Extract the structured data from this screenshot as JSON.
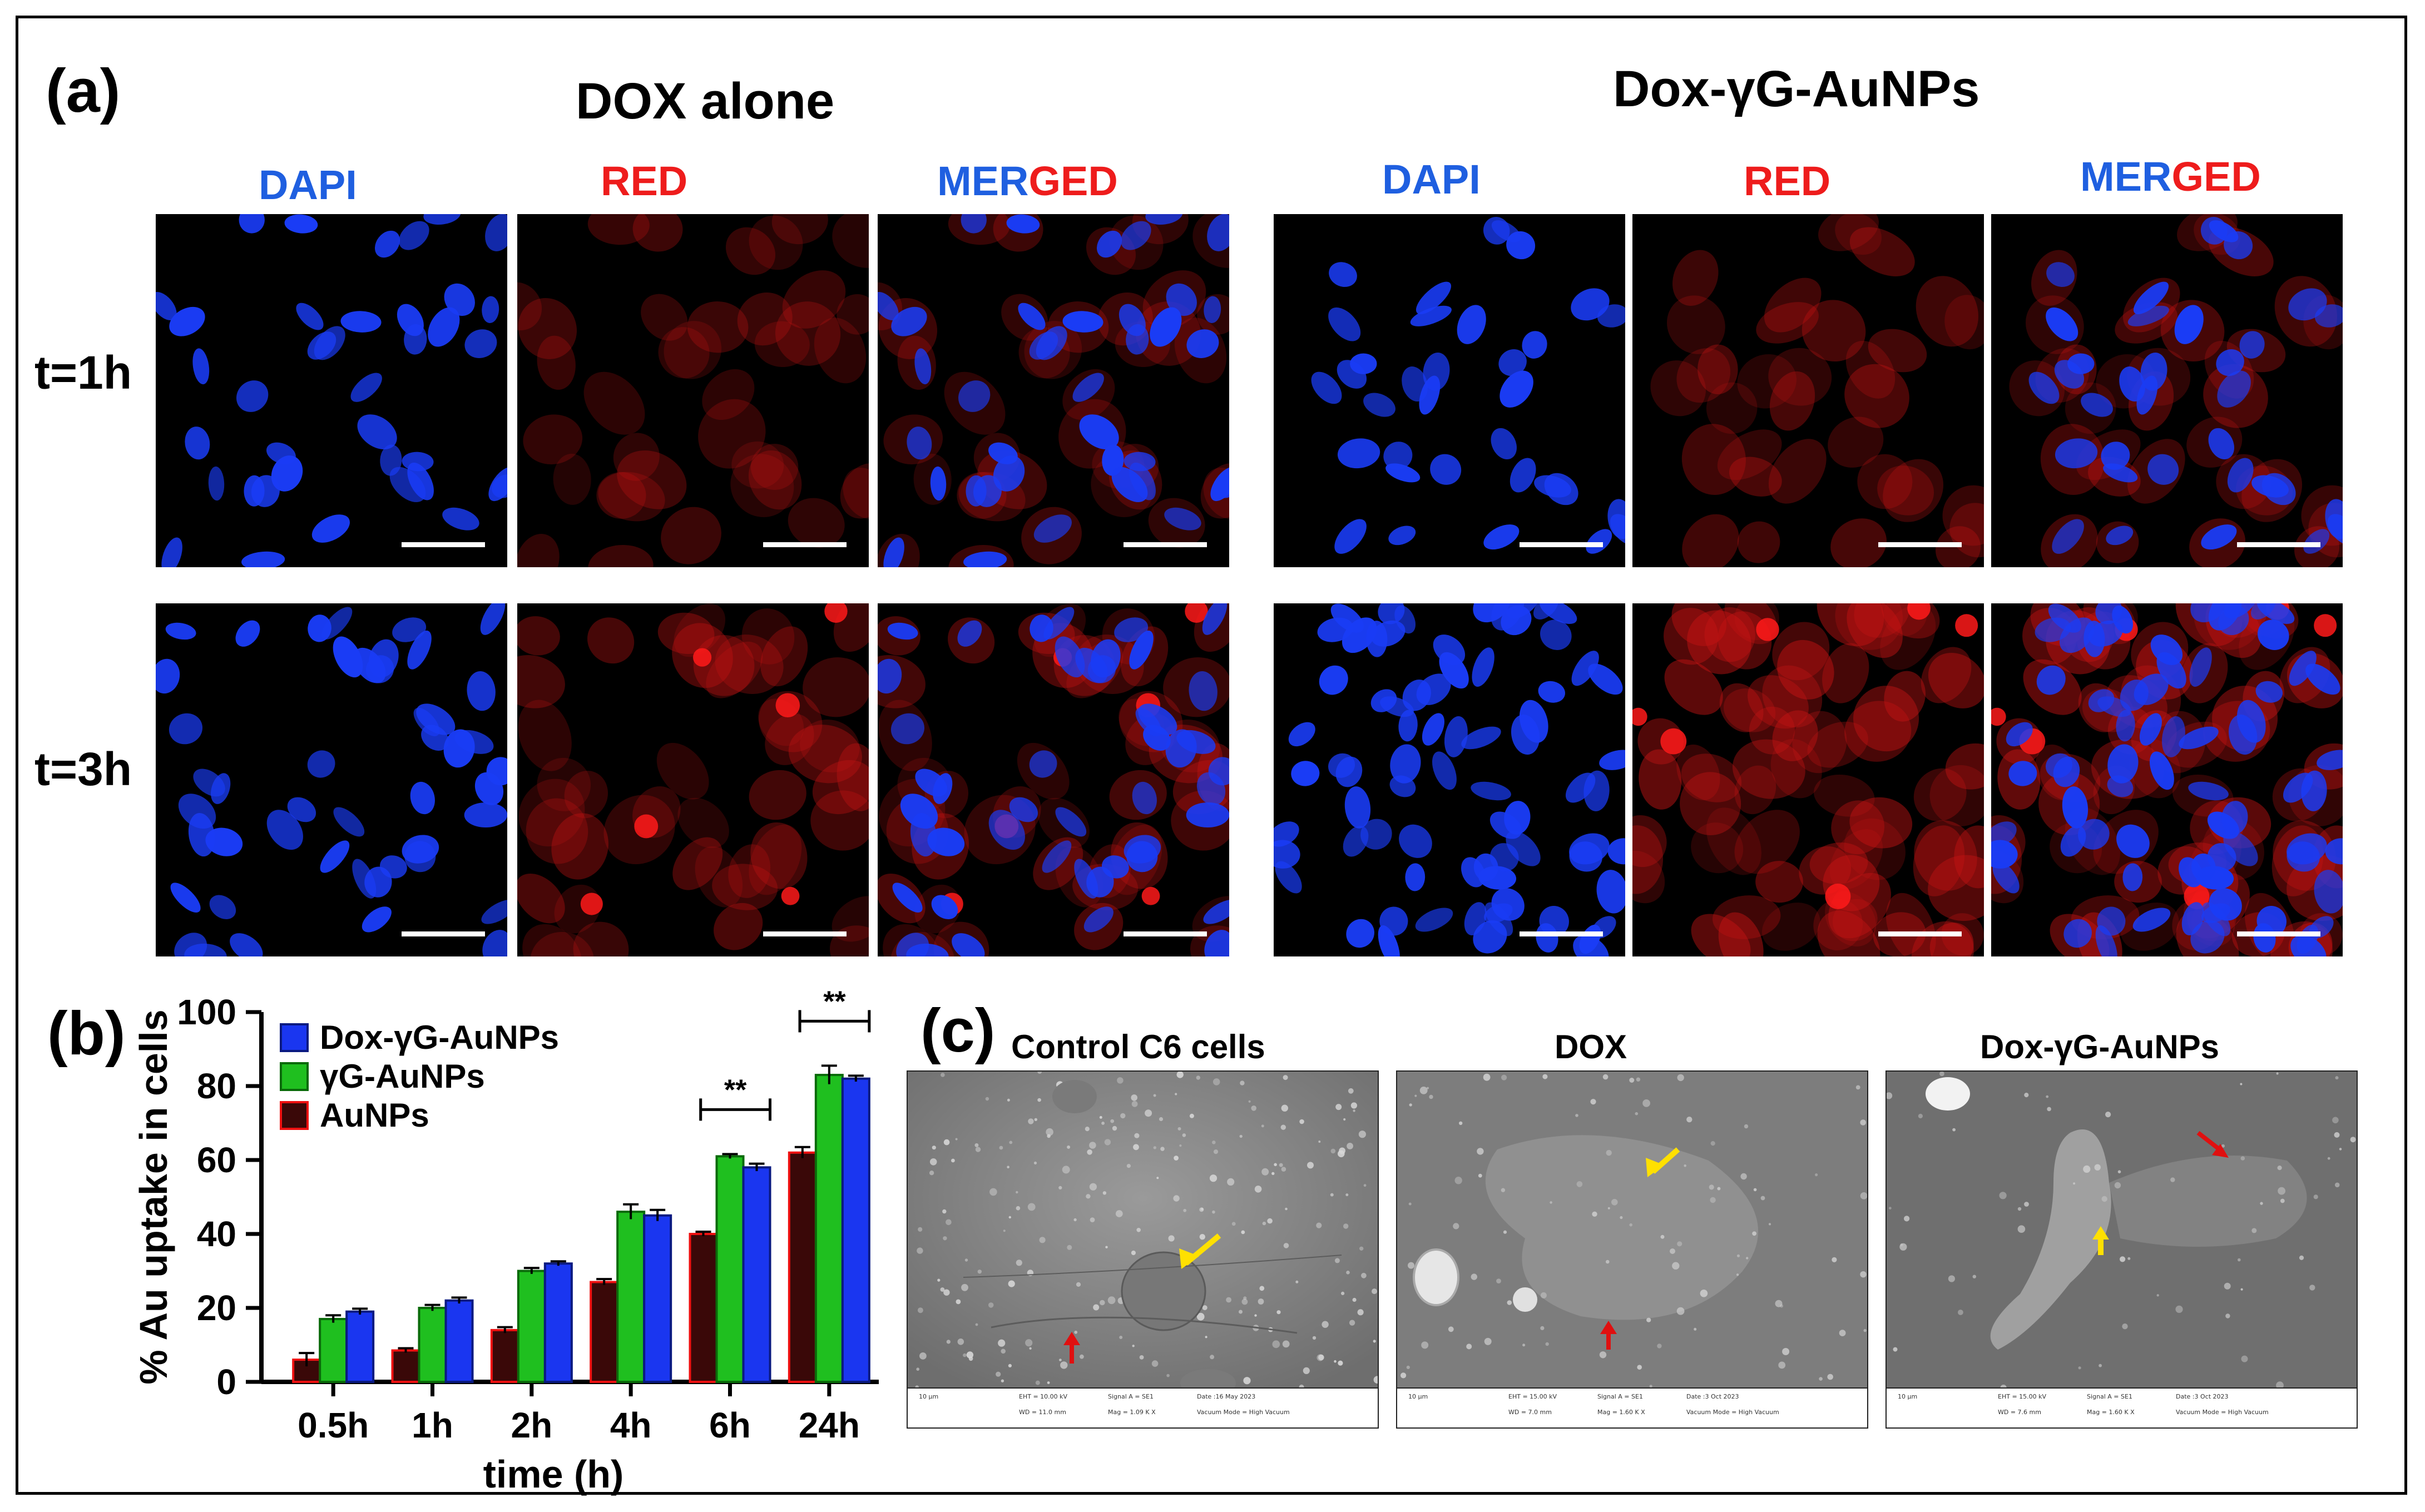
{
  "panel_a": {
    "letter": "(a)",
    "group_left_title": "DOX alone",
    "group_right_title": "Dox-γG-AuNPs",
    "columns": [
      {
        "parts": [
          {
            "text": "DAPI",
            "color": "blue"
          }
        ]
      },
      {
        "parts": [
          {
            "text": "RED",
            "color": "red"
          }
        ]
      },
      {
        "parts": [
          {
            "text": "MER",
            "color": "blue"
          },
          {
            "text": "GED",
            "color": "red"
          }
        ]
      }
    ],
    "rows": [
      "t=1h",
      "t=3h"
    ]
  },
  "panel_b": {
    "letter": "(b)"
  },
  "panel_c": {
    "letter": "(c)",
    "images": [
      {
        "title": "Control C6 cells",
        "footer": {
          "scale": "10 µm",
          "eht": "EHT = 10.00 kV",
          "wd": "WD = 11.0 mm",
          "signal": "Signal A = SE1",
          "mag": "Mag = 1.09 K X",
          "date": "Date :16 May 2023",
          "vac": "Vacuum Mode = High Vacuum"
        }
      },
      {
        "title": "DOX",
        "footer": {
          "scale": "10 µm",
          "eht": "EHT = 15.00 kV",
          "wd": "WD = 7.0 mm",
          "signal": "Signal A = SE1",
          "mag": "Mag = 1.60 K X",
          "date": "Date :3 Oct 2023",
          "vac": "Vacuum Mode = High Vacuum"
        }
      },
      {
        "title": "Dox-γG-AuNPs",
        "footer": {
          "scale": "10 µm",
          "eht": "EHT = 15.00 kV",
          "wd": "WD = 7.6 mm",
          "signal": "Signal A = SE1",
          "mag": "Mag = 1.60 K X",
          "date": "Date :3 Oct 2023",
          "vac": "Vacuum Mode = High Vacuum"
        }
      }
    ]
  },
  "colors": {
    "dapi_blue": "#1f5fe0",
    "red_label": "#ee1c1c",
    "series_blue": "#1a36f0",
    "series_green": "#1fbf1f",
    "series_dark": "#3a0808",
    "series_red_edge": "#ee1111"
  },
  "chart_data": {
    "type": "bar",
    "categories": [
      "0.5h",
      "1h",
      "2h",
      "4h",
      "6h",
      "24h"
    ],
    "series": [
      {
        "name": "AuNPs",
        "values": [
          6,
          8.5,
          14,
          27,
          40,
          62
        ],
        "errors": [
          1.8,
          0.6,
          0.8,
          0.8,
          0.6,
          1.5
        ]
      },
      {
        "name": "γG-AuNPs",
        "values": [
          17,
          20,
          30,
          46,
          61,
          83
        ],
        "errors": [
          1,
          0.8,
          0.8,
          2,
          0.6,
          2.5
        ]
      },
      {
        "name": "Dox-γG-AuNPs",
        "values": [
          19,
          22,
          32,
          45,
          58,
          82
        ],
        "errors": [
          0.8,
          0.8,
          0.6,
          1.5,
          1,
          0.8
        ]
      }
    ],
    "xlabel": "time (h)",
    "ylabel": "% Au uptake in cells",
    "ylim": [
      0,
      100
    ],
    "yticks": [
      "0",
      "20",
      "40",
      "60",
      "80",
      "100"
    ],
    "legend_position": "top-left",
    "legend_order": [
      "Dox-γG-AuNPs",
      "γG-AuNPs",
      "AuNPs"
    ],
    "significance": [
      {
        "label": "**",
        "category": "6h"
      },
      {
        "label": "**",
        "category": "24h"
      }
    ]
  }
}
